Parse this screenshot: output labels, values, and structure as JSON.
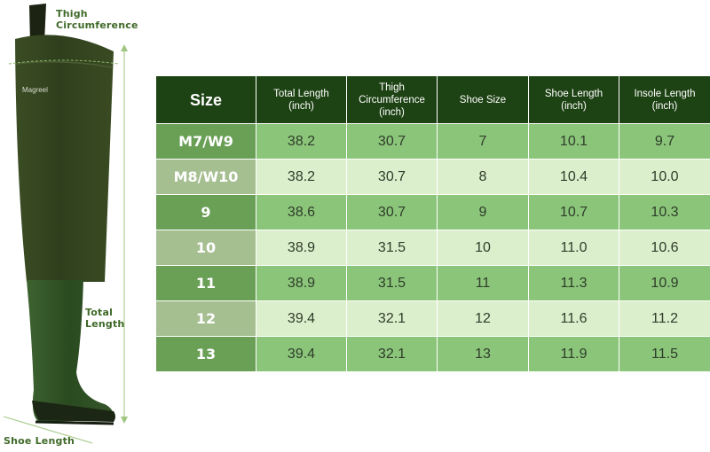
{
  "labels": {
    "thigh": "Thigh\nCircumference",
    "thigh_line1": "Thigh",
    "thigh_line2": "Circumference",
    "total_length": "Total Length",
    "shoe_length": "Shoe Length",
    "brand": "Magreel"
  },
  "table": {
    "headers": [
      {
        "line1": "Size",
        "line2": "",
        "line3": ""
      },
      {
        "line1": "Total Length",
        "line2": "(inch)",
        "line3": ""
      },
      {
        "line1": "Thigh",
        "line2": "Circumference",
        "line3": "(inch)"
      },
      {
        "line1": "Shoe Size",
        "line2": "",
        "line3": ""
      },
      {
        "line1": "Shoe Length",
        "line2": "(inch)",
        "line3": ""
      },
      {
        "line1": "Insole Length",
        "line2": "(inch)",
        "line3": ""
      }
    ],
    "rows": [
      [
        "M7/W9",
        "38.2",
        "30.7",
        "7",
        "10.1",
        "9.7"
      ],
      [
        "M8/W10",
        "38.2",
        "30.7",
        "8",
        "10.4",
        "10.0"
      ],
      [
        "9",
        "38.6",
        "30.7",
        "9",
        "10.7",
        "10.3"
      ],
      [
        "10",
        "38.9",
        "31.5",
        "10",
        "11.0",
        "10.6"
      ],
      [
        "11",
        "38.9",
        "31.5",
        "11",
        "11.3",
        "10.9"
      ],
      [
        "12",
        "39.4",
        "32.1",
        "12",
        "11.6",
        "11.2"
      ],
      [
        "13",
        "39.4",
        "32.1",
        "13",
        "11.9",
        "11.5"
      ]
    ]
  },
  "colors": {
    "header_bg": "#1d4213",
    "row_odd": "#8bc57a",
    "row_even": "#dcefcc",
    "size_odd": "#6a9f56",
    "size_even": "#a5bf91",
    "label_green": "#3f6a29",
    "boot_upper": "#33441f",
    "boot_lower": "#2c4a22"
  },
  "icons": [
    "hip-wader-boot-illustration",
    "measure-arrow"
  ]
}
